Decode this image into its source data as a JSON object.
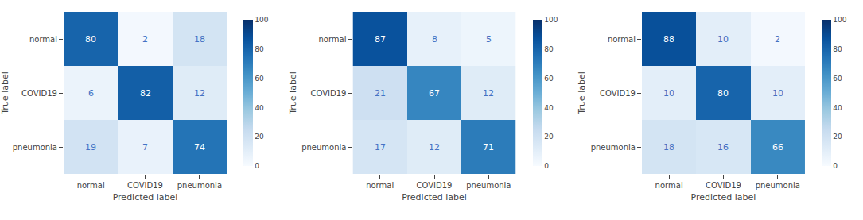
{
  "chart_data": [
    {
      "type": "heatmap",
      "x": [
        "normal",
        "COVID19",
        "pneumonia"
      ],
      "y": [
        "normal",
        "COVID19",
        "pneumonia"
      ],
      "xlabel": "Predicted label",
      "ylabel": "True label",
      "values": [
        [
          80,
          2,
          18
        ],
        [
          6,
          82,
          12
        ],
        [
          19,
          7,
          74
        ]
      ],
      "color": "Blues",
      "data_labels": true,
      "colorbar_range": [
        0,
        100
      ],
      "colorbar_ticks": [
        0,
        20,
        40,
        60,
        80,
        100
      ]
    },
    {
      "type": "heatmap",
      "x": [
        "normal",
        "COVID19",
        "pneumonia"
      ],
      "y": [
        "normal",
        "COVID19",
        "pneumonia"
      ],
      "xlabel": "Predicted label",
      "ylabel": "True label",
      "values": [
        [
          87,
          8,
          5
        ],
        [
          21,
          67,
          12
        ],
        [
          17,
          12,
          71
        ]
      ],
      "color": "Blues",
      "data_labels": true,
      "colorbar_range": [
        0,
        100
      ],
      "colorbar_ticks": [
        0,
        20,
        40,
        60,
        80,
        100
      ]
    },
    {
      "type": "heatmap",
      "x": [
        "normal",
        "COVID19",
        "pneumonia"
      ],
      "y": [
        "normal",
        "COVID19",
        "pneumonia"
      ],
      "xlabel": "Predicted label",
      "ylabel": "True label",
      "values": [
        [
          88,
          10,
          2
        ],
        [
          10,
          80,
          10
        ],
        [
          18,
          16,
          66
        ]
      ],
      "color": "Blues",
      "data_labels": true,
      "colorbar_range": [
        0,
        100
      ],
      "colorbar_ticks": [
        0,
        20,
        40,
        60,
        80,
        100
      ]
    }
  ]
}
